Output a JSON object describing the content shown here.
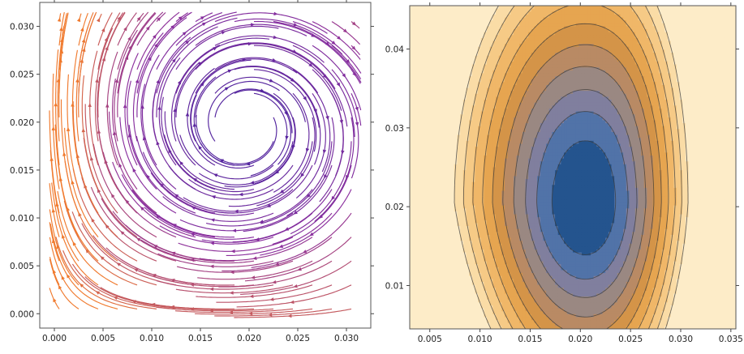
{
  "chart_data": [
    {
      "type": "streamplot",
      "title": "",
      "xlabel": "",
      "ylabel": "",
      "xlim": [
        -0.0015,
        0.0325
      ],
      "ylim": [
        -0.0015,
        0.0325
      ],
      "xticks": [
        "0.000",
        "0.005",
        "0.010",
        "0.015",
        "0.020",
        "0.025",
        "0.030"
      ],
      "yticks": [
        "0.000",
        "0.005",
        "0.010",
        "0.015",
        "0.020",
        "0.025",
        "0.030"
      ],
      "xtick_values": [
        0,
        0.005,
        0.01,
        0.015,
        0.02,
        0.025,
        0.03
      ],
      "ytick_values": [
        0,
        0.005,
        0.01,
        0.015,
        0.02,
        0.025,
        0.03
      ],
      "focus": [
        0.0195,
        0.0195
      ],
      "stream_start_points": [
        [
          0.0005,
          0.0005
        ],
        [
          0.0025,
          0.0005
        ],
        [
          0.0045,
          0.0005
        ],
        [
          0.0065,
          0.0005
        ],
        [
          0.0085,
          0.0005
        ],
        [
          0.0105,
          0.0005
        ],
        [
          0.0125,
          0.0005
        ],
        [
          0.0145,
          0.0005
        ],
        [
          0.0165,
          0.0005
        ],
        [
          0.0185,
          0.0005
        ],
        [
          0.0205,
          0.0005
        ],
        [
          0.0225,
          0.0005
        ],
        [
          0.0245,
          0.0005
        ],
        [
          0.0265,
          0.0005
        ],
        [
          0.0285,
          0.0005
        ],
        [
          0.0305,
          0.0005
        ],
        [
          0.0005,
          0.003
        ],
        [
          0.0025,
          0.003
        ],
        [
          0.0045,
          0.003
        ],
        [
          0.0065,
          0.003
        ],
        [
          0.0085,
          0.003
        ],
        [
          0.0105,
          0.003
        ],
        [
          0.0125,
          0.003
        ],
        [
          0.0145,
          0.003
        ],
        [
          0.0165,
          0.003
        ],
        [
          0.0185,
          0.003
        ],
        [
          0.0205,
          0.003
        ],
        [
          0.0225,
          0.003
        ],
        [
          0.0245,
          0.003
        ],
        [
          0.0265,
          0.003
        ],
        [
          0.0285,
          0.003
        ],
        [
          0.0305,
          0.003
        ],
        [
          0.0005,
          0.0055
        ],
        [
          0.0025,
          0.0055
        ],
        [
          0.0045,
          0.0055
        ],
        [
          0.0065,
          0.0055
        ],
        [
          0.0085,
          0.0055
        ],
        [
          0.0105,
          0.0055
        ],
        [
          0.0125,
          0.0055
        ],
        [
          0.0145,
          0.0055
        ],
        [
          0.0165,
          0.0055
        ],
        [
          0.0185,
          0.0055
        ],
        [
          0.0205,
          0.0055
        ],
        [
          0.0225,
          0.0055
        ],
        [
          0.0245,
          0.0055
        ],
        [
          0.0265,
          0.0055
        ],
        [
          0.0285,
          0.0055
        ],
        [
          0.0305,
          0.0055
        ],
        [
          0.0005,
          0.008
        ],
        [
          0.0025,
          0.008
        ],
        [
          0.0045,
          0.008
        ],
        [
          0.0065,
          0.008
        ],
        [
          0.0085,
          0.008
        ],
        [
          0.0105,
          0.008
        ],
        [
          0.0125,
          0.008
        ],
        [
          0.0145,
          0.008
        ],
        [
          0.0165,
          0.008
        ],
        [
          0.0185,
          0.008
        ],
        [
          0.0205,
          0.008
        ],
        [
          0.0225,
          0.008
        ],
        [
          0.0245,
          0.008
        ],
        [
          0.0265,
          0.008
        ],
        [
          0.0285,
          0.008
        ],
        [
          0.0305,
          0.008
        ],
        [
          0.0005,
          0.0105
        ],
        [
          0.0025,
          0.0105
        ],
        [
          0.0045,
          0.0105
        ],
        [
          0.0065,
          0.0105
        ],
        [
          0.0085,
          0.0105
        ],
        [
          0.0105,
          0.0105
        ],
        [
          0.0125,
          0.0105
        ],
        [
          0.0145,
          0.0105
        ],
        [
          0.0165,
          0.0105
        ],
        [
          0.0185,
          0.0105
        ],
        [
          0.0205,
          0.0105
        ],
        [
          0.0225,
          0.0105
        ],
        [
          0.0245,
          0.0105
        ],
        [
          0.0265,
          0.0105
        ],
        [
          0.0285,
          0.0105
        ],
        [
          0.0305,
          0.0105
        ],
        [
          0.0005,
          0.013
        ],
        [
          0.0025,
          0.013
        ],
        [
          0.0045,
          0.013
        ],
        [
          0.0065,
          0.013
        ],
        [
          0.0085,
          0.013
        ],
        [
          0.0105,
          0.013
        ],
        [
          0.0125,
          0.013
        ],
        [
          0.0145,
          0.013
        ],
        [
          0.0165,
          0.013
        ],
        [
          0.0185,
          0.013
        ],
        [
          0.0205,
          0.013
        ],
        [
          0.0225,
          0.013
        ],
        [
          0.0245,
          0.013
        ],
        [
          0.0265,
          0.013
        ],
        [
          0.0285,
          0.013
        ],
        [
          0.0305,
          0.013
        ],
        [
          0.0005,
          0.0155
        ],
        [
          0.0025,
          0.0155
        ],
        [
          0.0045,
          0.0155
        ],
        [
          0.0065,
          0.0155
        ],
        [
          0.0085,
          0.0155
        ],
        [
          0.0105,
          0.0155
        ],
        [
          0.0125,
          0.0155
        ],
        [
          0.0145,
          0.0155
        ],
        [
          0.0165,
          0.0155
        ],
        [
          0.0185,
          0.0155
        ],
        [
          0.0205,
          0.0155
        ],
        [
          0.0225,
          0.0155
        ],
        [
          0.0245,
          0.0155
        ],
        [
          0.0265,
          0.0155
        ],
        [
          0.0285,
          0.0155
        ],
        [
          0.0305,
          0.0155
        ],
        [
          0.0005,
          0.018
        ],
        [
          0.0025,
          0.018
        ],
        [
          0.0045,
          0.018
        ],
        [
          0.0065,
          0.018
        ],
        [
          0.0085,
          0.018
        ],
        [
          0.0105,
          0.018
        ],
        [
          0.0125,
          0.018
        ],
        [
          0.0145,
          0.018
        ],
        [
          0.0165,
          0.018
        ],
        [
          0.0225,
          0.018
        ],
        [
          0.0245,
          0.018
        ],
        [
          0.0265,
          0.018
        ],
        [
          0.0285,
          0.018
        ],
        [
          0.0305,
          0.018
        ],
        [
          0.0005,
          0.0205
        ],
        [
          0.0025,
          0.0205
        ],
        [
          0.0045,
          0.0205
        ],
        [
          0.0065,
          0.0205
        ],
        [
          0.0085,
          0.0205
        ],
        [
          0.0105,
          0.0205
        ],
        [
          0.0125,
          0.0205
        ],
        [
          0.0145,
          0.0205
        ],
        [
          0.0165,
          0.0205
        ],
        [
          0.0225,
          0.0205
        ],
        [
          0.0245,
          0.0205
        ],
        [
          0.0265,
          0.0205
        ],
        [
          0.0285,
          0.0205
        ],
        [
          0.0305,
          0.0205
        ],
        [
          0.0005,
          0.023
        ],
        [
          0.0025,
          0.023
        ],
        [
          0.0045,
          0.023
        ],
        [
          0.0065,
          0.023
        ],
        [
          0.0085,
          0.023
        ],
        [
          0.0105,
          0.023
        ],
        [
          0.0125,
          0.023
        ],
        [
          0.0145,
          0.023
        ],
        [
          0.0165,
          0.023
        ],
        [
          0.0185,
          0.023
        ],
        [
          0.0205,
          0.023
        ],
        [
          0.0225,
          0.023
        ],
        [
          0.0245,
          0.023
        ],
        [
          0.0265,
          0.023
        ],
        [
          0.0285,
          0.023
        ],
        [
          0.0305,
          0.023
        ],
        [
          0.0005,
          0.0255
        ],
        [
          0.0025,
          0.0255
        ],
        [
          0.0045,
          0.0255
        ],
        [
          0.0065,
          0.0255
        ],
        [
          0.0085,
          0.0255
        ],
        [
          0.0105,
          0.0255
        ],
        [
          0.0125,
          0.0255
        ],
        [
          0.0145,
          0.0255
        ],
        [
          0.0165,
          0.0255
        ],
        [
          0.0185,
          0.0255
        ],
        [
          0.0205,
          0.0255
        ],
        [
          0.0225,
          0.0255
        ],
        [
          0.0245,
          0.0255
        ],
        [
          0.0265,
          0.0255
        ],
        [
          0.0285,
          0.0255
        ],
        [
          0.0305,
          0.0255
        ],
        [
          0.0005,
          0.028
        ],
        [
          0.0025,
          0.028
        ],
        [
          0.0045,
          0.028
        ],
        [
          0.0065,
          0.028
        ],
        [
          0.0085,
          0.028
        ],
        [
          0.0105,
          0.028
        ],
        [
          0.0125,
          0.028
        ],
        [
          0.0145,
          0.028
        ],
        [
          0.0165,
          0.028
        ],
        [
          0.0185,
          0.028
        ],
        [
          0.0205,
          0.028
        ],
        [
          0.0225,
          0.028
        ],
        [
          0.0245,
          0.028
        ],
        [
          0.0265,
          0.028
        ],
        [
          0.0285,
          0.028
        ],
        [
          0.0305,
          0.028
        ],
        [
          0.0005,
          0.0305
        ],
        [
          0.0025,
          0.0305
        ],
        [
          0.0045,
          0.0305
        ],
        [
          0.0065,
          0.0305
        ],
        [
          0.0085,
          0.0305
        ],
        [
          0.0105,
          0.0305
        ],
        [
          0.0125,
          0.0305
        ],
        [
          0.0145,
          0.0305
        ],
        [
          0.0165,
          0.0305
        ],
        [
          0.0185,
          0.0305
        ],
        [
          0.0205,
          0.0305
        ],
        [
          0.0225,
          0.0305
        ],
        [
          0.0245,
          0.0305
        ],
        [
          0.0265,
          0.0305
        ],
        [
          0.0285,
          0.0305
        ],
        [
          0.0305,
          0.0305
        ]
      ],
      "colors": {
        "slow": "#3a1f9e",
        "mid": "#8b2f9e",
        "fast": "#f07a2e"
      },
      "grid": false,
      "legend": "none"
    },
    {
      "type": "contour",
      "title": "",
      "xlabel": "",
      "ylabel": "",
      "xlim": [
        0.003,
        0.0355
      ],
      "ylim": [
        0.0045,
        0.0455
      ],
      "xticks": [
        "0.005",
        "0.010",
        "0.015",
        "0.020",
        "0.025",
        "0.030",
        "0.035"
      ],
      "yticks": [
        "0.01",
        "0.02",
        "0.03",
        "0.04"
      ],
      "xtick_values": [
        0.005,
        0.01,
        0.015,
        0.02,
        0.025,
        0.03,
        0.035
      ],
      "ytick_values": [
        0.01,
        0.02,
        0.03,
        0.04
      ],
      "minimum": [
        0.0205,
        0.0205
      ],
      "levels": [
        0.3,
        0.65,
        1.0,
        1.45,
        1.95,
        2.5,
        3.1,
        3.75,
        4.45,
        5.2
      ],
      "fill_colors": [
        "#24548e",
        "#5173a8",
        "#807f9e",
        "#9a8882",
        "#b98a64",
        "#d49448",
        "#e6a550",
        "#f0b768",
        "#f6ca86",
        "#fadca6",
        "#fdecc8"
      ],
      "grid": false,
      "legend": "none"
    }
  ]
}
